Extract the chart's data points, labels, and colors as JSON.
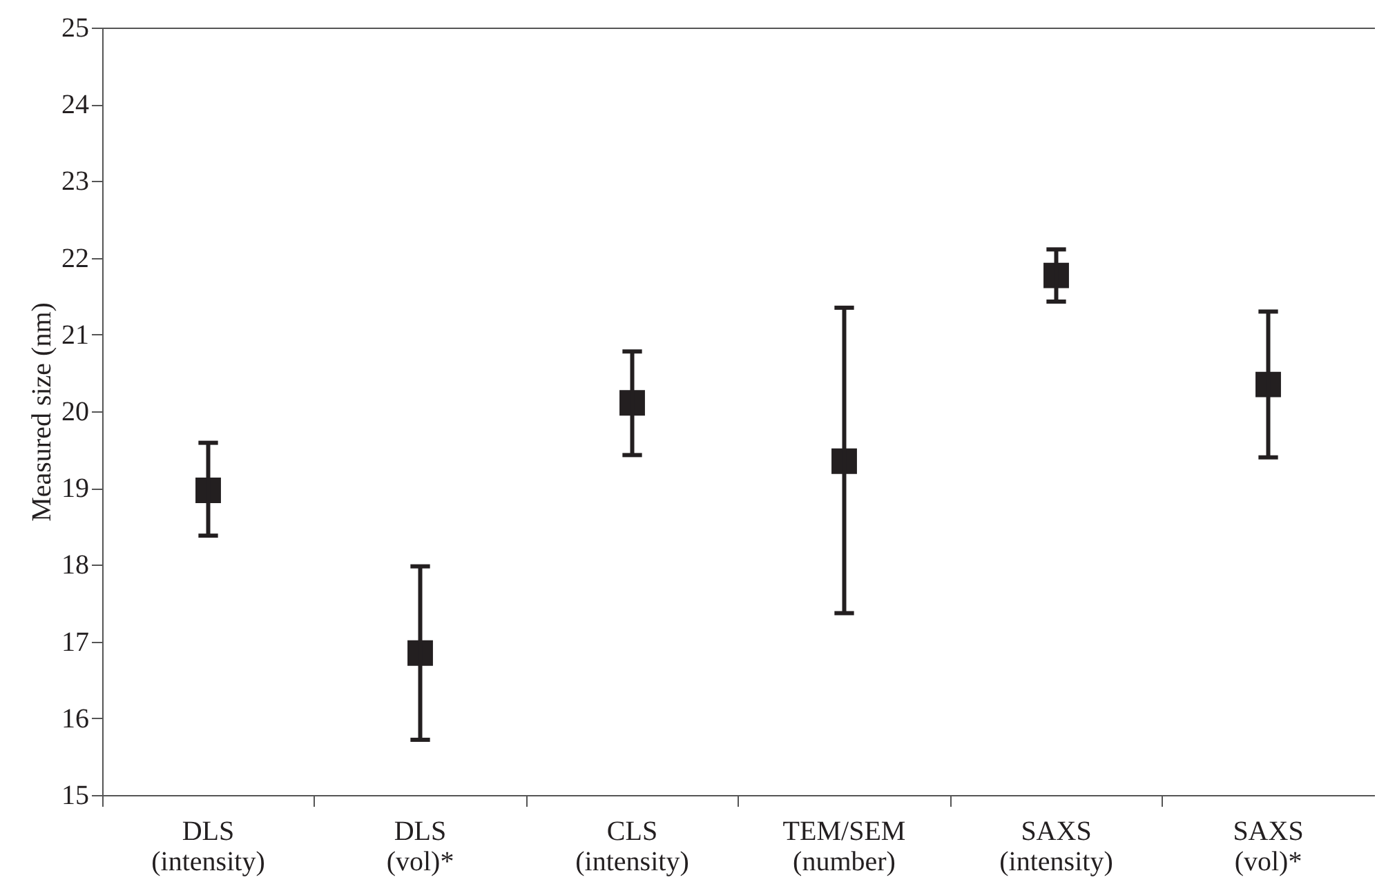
{
  "chart_data": {
    "type": "scatter",
    "ylabel": "Measured size (nm)",
    "categories": [
      "DLS (intensity)",
      "DLS (vol)*",
      "CLS (intensity)",
      "TEM/SEM (number)",
      "SAXS (intensity)",
      "SAXS (vol)*"
    ],
    "series": [
      {
        "color": "#231f20",
        "values": [
          18.97,
          16.85,
          20.11,
          19.35,
          21.77,
          20.35
        ],
        "errors": [
          [
            18.38,
            19.59
          ],
          [
            15.72,
            17.98
          ],
          [
            19.43,
            20.78
          ],
          [
            17.37,
            21.35
          ],
          [
            21.43,
            22.11
          ],
          [
            19.4,
            21.3
          ]
        ]
      }
    ],
    "ylim": [
      15,
      25
    ],
    "yticks": [
      15,
      16,
      17,
      18,
      19,
      20,
      21,
      22,
      23,
      24,
      25
    ],
    "marker": "square",
    "grid": false
  }
}
